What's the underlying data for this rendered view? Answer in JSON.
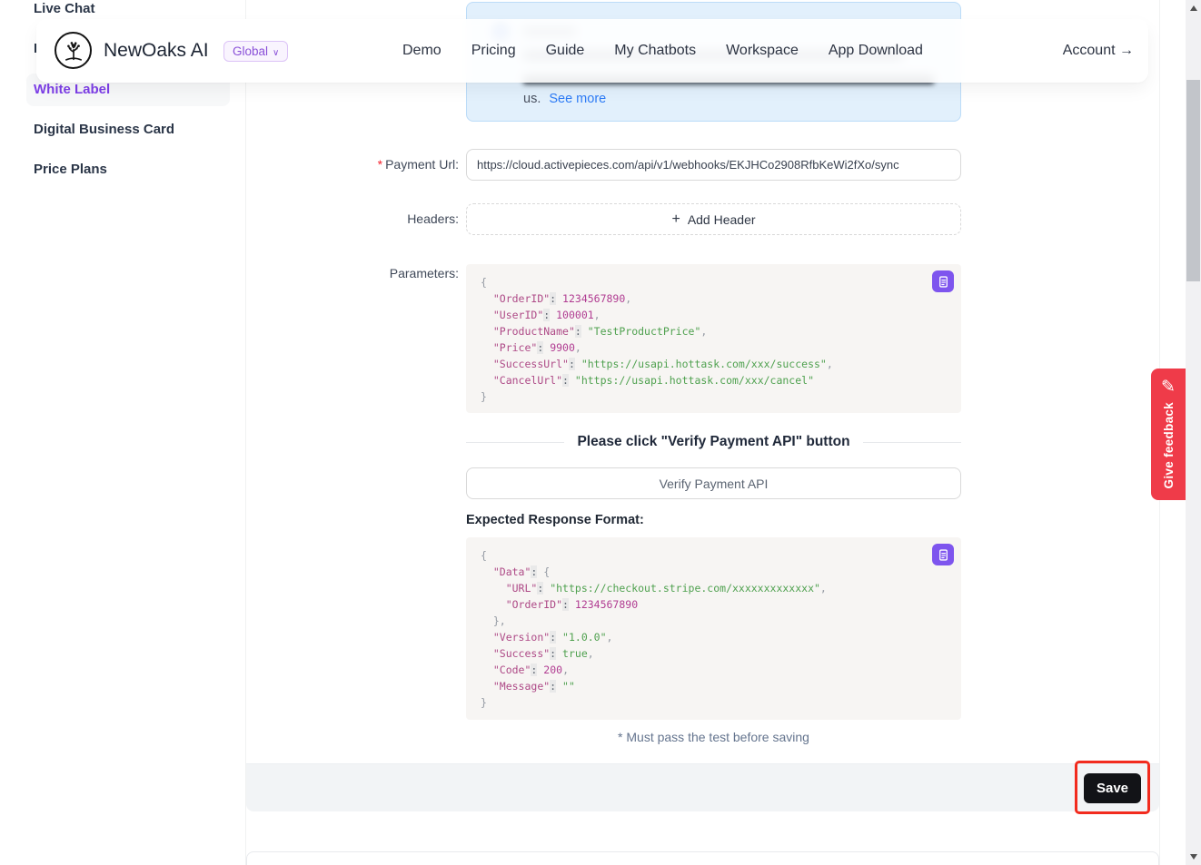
{
  "sidebar": {
    "items": [
      {
        "label": "Live Chat",
        "active": false
      },
      {
        "label": "I",
        "active": false
      },
      {
        "label": "White Label",
        "active": true
      },
      {
        "label": "Digital Business Card",
        "active": false
      },
      {
        "label": "Price Plans",
        "active": false
      }
    ]
  },
  "navbar": {
    "brand": "NewOaks AI",
    "region_selector": "Global",
    "links": [
      "Demo",
      "Pricing",
      "Guide",
      "My Chatbots",
      "Workspace",
      "App Download"
    ],
    "account_label": "Account →"
  },
  "reminder": {
    "suffix_text": "us.",
    "see_more_label": "See more"
  },
  "form": {
    "payment_url": {
      "required_mark": "*",
      "label": "Payment Url:",
      "value": "https://cloud.activepieces.com/api/v1/webhooks/EKJHCo2908RfbKeWi2fXo/sync"
    },
    "headers": {
      "label": "Headers:",
      "plus": "+",
      "add_button_label": "Add Header"
    },
    "parameters": {
      "label": "Parameters:"
    },
    "divider_text": "Please click \"Verify Payment API\" button",
    "verify_button_label": "Verify Payment API",
    "expected_response_label": "Expected Response Format:",
    "must_pass_note": "* Must pass the test before saving",
    "save_button_label": "Save"
  },
  "code_blocks": {
    "parameters": {
      "lines": [
        [
          [
            "p",
            "{"
          ]
        ],
        [
          [
            "w",
            "  "
          ],
          [
            "k",
            "\"OrderID\""
          ],
          [
            "c",
            ":"
          ],
          [
            "w",
            " "
          ],
          [
            "n",
            "1234567890"
          ],
          [
            "p",
            ","
          ]
        ],
        [
          [
            "w",
            "  "
          ],
          [
            "k",
            "\"UserID\""
          ],
          [
            "c",
            ":"
          ],
          [
            "w",
            " "
          ],
          [
            "n",
            "100001"
          ],
          [
            "p",
            ","
          ]
        ],
        [
          [
            "w",
            "  "
          ],
          [
            "k",
            "\"ProductName\""
          ],
          [
            "c",
            ":"
          ],
          [
            "w",
            " "
          ],
          [
            "s",
            "\"TestProductPrice\""
          ],
          [
            "p",
            ","
          ]
        ],
        [
          [
            "w",
            "  "
          ],
          [
            "k",
            "\"Price\""
          ],
          [
            "c",
            ":"
          ],
          [
            "w",
            " "
          ],
          [
            "n",
            "9900"
          ],
          [
            "p",
            ","
          ]
        ],
        [
          [
            "w",
            "  "
          ],
          [
            "k",
            "\"SuccessUrl\""
          ],
          [
            "c",
            ":"
          ],
          [
            "w",
            " "
          ],
          [
            "s",
            "\"https://usapi.hottask.com/xxx/success\""
          ],
          [
            "p",
            ","
          ]
        ],
        [
          [
            "w",
            "  "
          ],
          [
            "k",
            "\"CancelUrl\""
          ],
          [
            "c",
            ":"
          ],
          [
            "w",
            " "
          ],
          [
            "s",
            "\"https://usapi.hottask.com/xxx/cancel\""
          ]
        ],
        [
          [
            "p",
            "}"
          ]
        ]
      ]
    },
    "expected_response": {
      "lines": [
        [
          [
            "p",
            "{"
          ]
        ],
        [
          [
            "w",
            "  "
          ],
          [
            "k",
            "\"Data\""
          ],
          [
            "c",
            ":"
          ],
          [
            "w",
            " "
          ],
          [
            "p",
            "{"
          ]
        ],
        [
          [
            "w",
            "    "
          ],
          [
            "k",
            "\"URL\""
          ],
          [
            "c",
            ":"
          ],
          [
            "w",
            " "
          ],
          [
            "s",
            "\"https://checkout.stripe.com/xxxxxxxxxxxxx\""
          ],
          [
            "p",
            ","
          ]
        ],
        [
          [
            "w",
            "    "
          ],
          [
            "k",
            "\"OrderID\""
          ],
          [
            "c",
            ":"
          ],
          [
            "w",
            " "
          ],
          [
            "n",
            "1234567890"
          ]
        ],
        [
          [
            "w",
            "  "
          ],
          [
            "p",
            "},"
          ]
        ],
        [
          [
            "w",
            "  "
          ],
          [
            "k",
            "\"Version\""
          ],
          [
            "c",
            ":"
          ],
          [
            "w",
            " "
          ],
          [
            "s",
            "\"1.0.0\""
          ],
          [
            "p",
            ","
          ]
        ],
        [
          [
            "w",
            "  "
          ],
          [
            "k",
            "\"Success\""
          ],
          [
            "c",
            ":"
          ],
          [
            "w",
            " "
          ],
          [
            "b",
            "true"
          ],
          [
            "p",
            ","
          ]
        ],
        [
          [
            "w",
            "  "
          ],
          [
            "k",
            "\"Code\""
          ],
          [
            "c",
            ":"
          ],
          [
            "w",
            " "
          ],
          [
            "n",
            "200"
          ],
          [
            "p",
            ","
          ]
        ],
        [
          [
            "w",
            "  "
          ],
          [
            "k",
            "\"Message\""
          ],
          [
            "c",
            ":"
          ],
          [
            "w",
            " "
          ],
          [
            "s",
            "\"\""
          ]
        ],
        [
          [
            "p",
            "}"
          ]
        ]
      ]
    }
  },
  "feedback_tab": {
    "label": "Give feedback"
  },
  "icons": {
    "copy_icon": "copy-document",
    "pencil_icon": "✎",
    "chevron_down": "∨"
  },
  "colors": {
    "accent_purple": "#7d3ee8",
    "badge_purple": "#8a50d8",
    "link_blue": "#2e7cf6",
    "reminder_bg": "#e2f0fc",
    "code_bg": "#f7f5f3",
    "code_key": "#ae4a87",
    "code_string": "#4fa14f",
    "code_number": "#b13d92",
    "feedback_red": "#ef3b49",
    "annotation_red": "#f22b1e",
    "save_black": "#121317",
    "required_red": "#f5222d"
  }
}
